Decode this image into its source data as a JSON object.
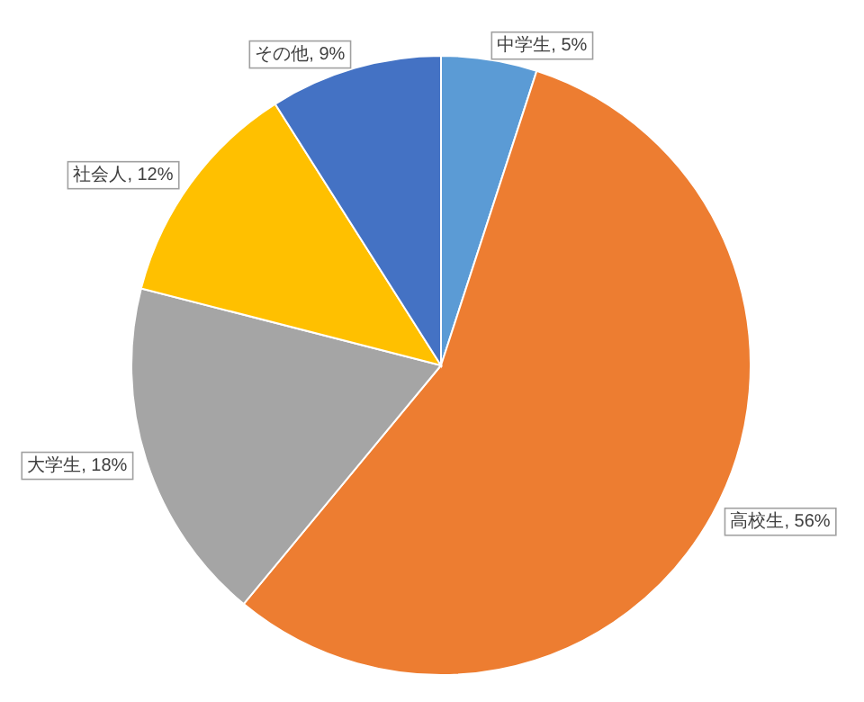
{
  "chart_data": {
    "type": "pie",
    "categories": [
      "中学生",
      "高校生",
      "大学生",
      "社会人",
      "その他"
    ],
    "values": [
      5,
      56,
      18,
      12,
      9
    ],
    "value_labels": [
      ", 5%",
      ", 56%",
      ", 18%",
      ", 12%",
      ", 9%"
    ],
    "colors": [
      "#5b9bd5",
      "#ed7d31",
      "#a5a5a5",
      "#ffc000",
      "#4472c4"
    ],
    "legend": false
  }
}
